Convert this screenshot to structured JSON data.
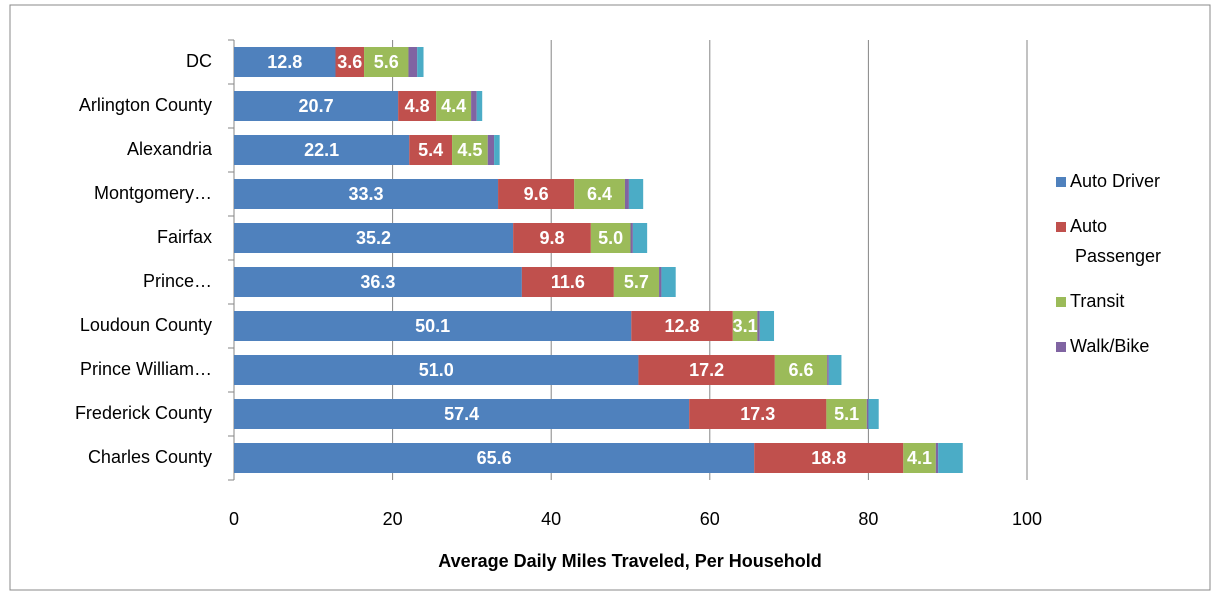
{
  "chart_data": {
    "type": "stacked-barh",
    "xlabel": "Average Daily Miles Traveled, Per Household",
    "categories": [
      "DC",
      "Arlington County",
      "Alexandria",
      "Montgomery…",
      "Fairfax",
      "Prince…",
      "Loudoun County",
      "Prince William…",
      "Frederick County",
      "Charles County"
    ],
    "series": [
      {
        "name": "Auto Driver",
        "color": "#4f81bd",
        "values": [
          12.8,
          20.7,
          22.1,
          33.3,
          35.2,
          36.3,
          50.1,
          51.0,
          57.4,
          65.6
        ],
        "value_labels": [
          "12.8",
          "20.7",
          "22.1",
          "33.3",
          "35.2",
          "36.3",
          "50.1",
          "51.0",
          "57.4",
          "65.6"
        ]
      },
      {
        "name": "Auto Passenger",
        "color": "#c0504d",
        "values": [
          3.6,
          4.8,
          5.4,
          9.6,
          9.8,
          11.6,
          12.8,
          17.2,
          17.3,
          18.8
        ],
        "value_labels": [
          "3.6",
          "4.8",
          "5.4",
          "9.6",
          "9.8",
          "11.6",
          "12.8",
          "17.2",
          "17.3",
          "18.8"
        ]
      },
      {
        "name": "Transit",
        "color": "#9bbb59",
        "values": [
          5.6,
          4.4,
          4.5,
          6.4,
          5.0,
          5.7,
          3.1,
          6.6,
          5.1,
          4.1
        ],
        "value_labels": [
          "5.6",
          "4.4",
          "4.5",
          "6.4",
          "5.0",
          "5.7",
          "3.1",
          "6.6",
          "5.1",
          "4.1"
        ]
      },
      {
        "name": "Walk/Bike",
        "color": "#8064a2",
        "values": [
          1.1,
          0.7,
          0.8,
          0.5,
          0.3,
          0.3,
          0.3,
          0.2,
          0.2,
          0.3
        ]
      },
      {
        "color": "#4bacc6",
        "values": [
          0.8,
          0.7,
          0.7,
          1.8,
          1.8,
          1.8,
          1.8,
          1.6,
          1.3,
          3.1
        ]
      }
    ],
    "xlim": [
      0,
      100
    ],
    "xticks": [
      0,
      20,
      40,
      60,
      80,
      100
    ],
    "grid": true,
    "legend": "right"
  }
}
